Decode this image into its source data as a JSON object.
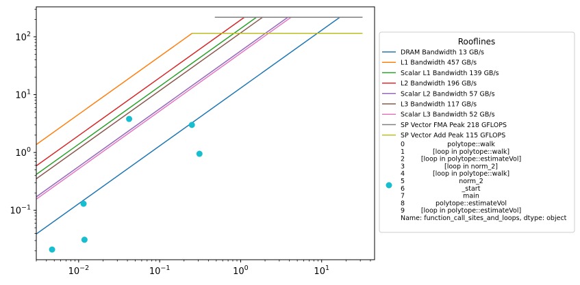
{
  "chart_data": {
    "type": "scatter",
    "xscale": "log",
    "yscale": "log",
    "xlim": [
      0.003,
      45
    ],
    "ylim": [
      0.014,
      330
    ],
    "grid": false,
    "x_ticks": [
      {
        "value": 0.01,
        "base": "10",
        "exp": "−2"
      },
      {
        "value": 0.1,
        "base": "10",
        "exp": "−1"
      },
      {
        "value": 1,
        "base": "10",
        "exp": "0"
      },
      {
        "value": 10,
        "base": "10",
        "exp": "1"
      }
    ],
    "y_ticks": [
      {
        "value": 0.1,
        "base": "10",
        "exp": "−1"
      },
      {
        "value": 1,
        "base": "10",
        "exp": "0"
      },
      {
        "value": 10,
        "base": "10",
        "exp": "1"
      },
      {
        "value": 100,
        "base": "10",
        "exp": "2"
      }
    ],
    "rooflines": [
      {
        "name": "DRAM Bandwidth 13 GB/s",
        "bandwidth": 13,
        "peak": 218,
        "color": "#1f77b4"
      },
      {
        "name": "L1 Bandwidth 457 GB/s",
        "bandwidth": 457,
        "peak": 115,
        "color": "#ff7f0e"
      },
      {
        "name": "Scalar L1 Bandwidth 139 GB/s",
        "bandwidth": 139,
        "peak": 218,
        "color": "#2ca02c"
      },
      {
        "name": "L2 Bandwidth 196 GB/s",
        "bandwidth": 196,
        "peak": 218,
        "color": "#d62728"
      },
      {
        "name": "Scalar L2 Bandwidth 57 GB/s",
        "bandwidth": 57,
        "peak": 218,
        "color": "#9467bd"
      },
      {
        "name": "L3 Bandwidth 117 GB/s",
        "bandwidth": 117,
        "peak": 218,
        "color": "#8c564b"
      },
      {
        "name": "Scalar L3 Bandwidth 52 GB/s",
        "bandwidth": 52,
        "peak": 218,
        "color": "#e377c2"
      }
    ],
    "peaks": [
      {
        "name": "SP Vector FMA Peak 218 GFLOPS",
        "value": 218,
        "x_start": 0.48,
        "x_end": 32,
        "color": "#7f7f7f"
      },
      {
        "name": "SP Vector Add Peak 115 GFLOPS",
        "value": 115,
        "x_start": 0.25,
        "x_end": 32,
        "color": "#bcbd22"
      }
    ],
    "x_line_start": 0.003,
    "points": [
      {
        "x": 0.0047,
        "y": 0.021
      },
      {
        "x": 0.0115,
        "y": 0.13
      },
      {
        "x": 0.0118,
        "y": 0.031
      },
      {
        "x": 0.042,
        "y": 3.8
      },
      {
        "x": 0.25,
        "y": 3.0
      },
      {
        "x": 0.31,
        "y": 0.95
      }
    ],
    "point_color": "#17becf",
    "legend": {
      "title": "Rooflines",
      "placement": "right",
      "scatter_entry_lines": [
        {
          "idx": "0",
          "label": "polytope::walk"
        },
        {
          "idx": "1",
          "label": "[loop in polytope::walk]"
        },
        {
          "idx": "2",
          "label": "[loop in polytope::estimateVol]"
        },
        {
          "idx": "3",
          "label": "[loop in norm_2]"
        },
        {
          "idx": "4",
          "label": "[loop in polytope::walk]"
        },
        {
          "idx": "5",
          "label": "norm_2"
        },
        {
          "idx": "6",
          "label": "_start"
        },
        {
          "idx": "7",
          "label": "main"
        },
        {
          "idx": "8",
          "label": "polytope::estimateVol"
        },
        {
          "idx": "9",
          "label": "[loop in polytope::estimateVol]"
        }
      ],
      "scatter_entry_footer": "Name: function_call_sites_and_loops, dtype: object"
    }
  }
}
